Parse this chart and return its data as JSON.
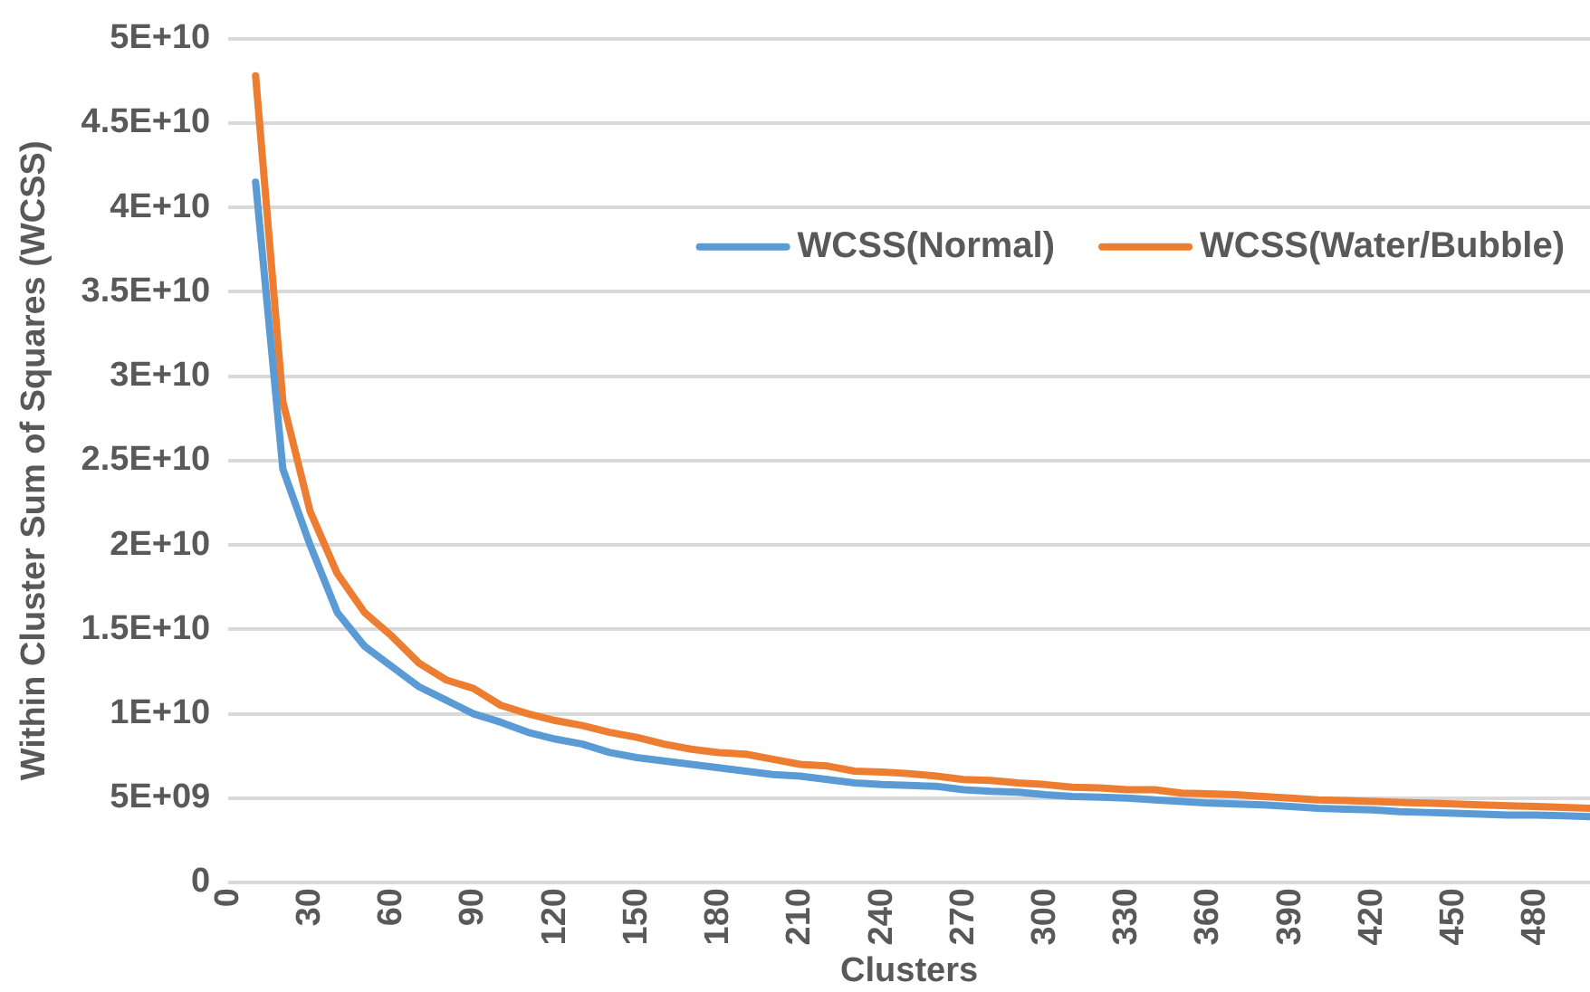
{
  "chart_data": {
    "type": "line",
    "xlabel": "Clusters",
    "ylabel": "Within Cluster Sum of Squares (WCSS)",
    "x": [
      10,
      20,
      30,
      40,
      50,
      60,
      70,
      80,
      90,
      100,
      110,
      120,
      130,
      140,
      150,
      160,
      170,
      180,
      190,
      200,
      210,
      220,
      230,
      240,
      250,
      260,
      270,
      280,
      290,
      300,
      310,
      320,
      330,
      340,
      350,
      360,
      370,
      380,
      390,
      400,
      410,
      420,
      430,
      440,
      450,
      460,
      470,
      480,
      490,
      500
    ],
    "series": [
      {
        "name": "WCSS(Normal)",
        "color": "#5b9bd5",
        "values": [
          41500000000,
          24500000000,
          20000000000,
          16000000000,
          14000000000,
          12800000000,
          11600000000,
          10800000000,
          10000000000,
          9500000000,
          8900000000,
          8500000000,
          8200000000,
          7700000000,
          7400000000,
          7200000000,
          7000000000,
          6800000000,
          6600000000,
          6400000000,
          6300000000,
          6100000000,
          5900000000,
          5800000000,
          5750000000,
          5700000000,
          5500000000,
          5400000000,
          5350000000,
          5200000000,
          5100000000,
          5050000000,
          5000000000,
          4900000000,
          4800000000,
          4700000000,
          4650000000,
          4600000000,
          4500000000,
          4400000000,
          4350000000,
          4300000000,
          4200000000,
          4150000000,
          4100000000,
          4050000000,
          4000000000,
          4000000000,
          3950000000,
          3900000000
        ]
      },
      {
        "name": "WCSS(Water/Bubble)",
        "color": "#ed7d31",
        "values": [
          47800000000,
          28500000000,
          22000000000,
          18300000000,
          16000000000,
          14600000000,
          13000000000,
          12000000000,
          11500000000,
          10500000000,
          10000000000,
          9600000000,
          9300000000,
          8900000000,
          8600000000,
          8200000000,
          7900000000,
          7700000000,
          7600000000,
          7300000000,
          7000000000,
          6900000000,
          6600000000,
          6550000000,
          6450000000,
          6300000000,
          6100000000,
          6050000000,
          5900000000,
          5800000000,
          5650000000,
          5600000000,
          5500000000,
          5500000000,
          5300000000,
          5250000000,
          5200000000,
          5100000000,
          5000000000,
          4900000000,
          4850000000,
          4800000000,
          4750000000,
          4700000000,
          4650000000,
          4600000000,
          4550000000,
          4500000000,
          4450000000,
          4400000000
        ]
      }
    ],
    "xlim": [
      0,
      500
    ],
    "xticks": [
      0,
      30,
      60,
      90,
      120,
      150,
      180,
      210,
      240,
      270,
      300,
      330,
      360,
      390,
      420,
      450,
      480
    ],
    "ylim": [
      0,
      50000000000
    ],
    "yticks": [
      0,
      {
        "value": 5000000000,
        "label": "5E+09"
      },
      {
        "value": 10000000000,
        "label": "1E+10"
      },
      {
        "value": 15000000000,
        "label": "1.5E+10"
      },
      {
        "value": 20000000000,
        "label": "2E+10"
      },
      {
        "value": 25000000000,
        "label": "2.5E+10"
      },
      {
        "value": 30000000000,
        "label": "3E+10"
      },
      {
        "value": 35000000000,
        "label": "3.5E+10"
      },
      {
        "value": 40000000000,
        "label": "4E+10"
      },
      {
        "value": 45000000000,
        "label": "4.5E+10"
      },
      {
        "value": 50000000000,
        "label": "5E+10"
      }
    ],
    "grid": "y",
    "legend": "top right",
    "marker": "none",
    "line_style": "solid"
  }
}
